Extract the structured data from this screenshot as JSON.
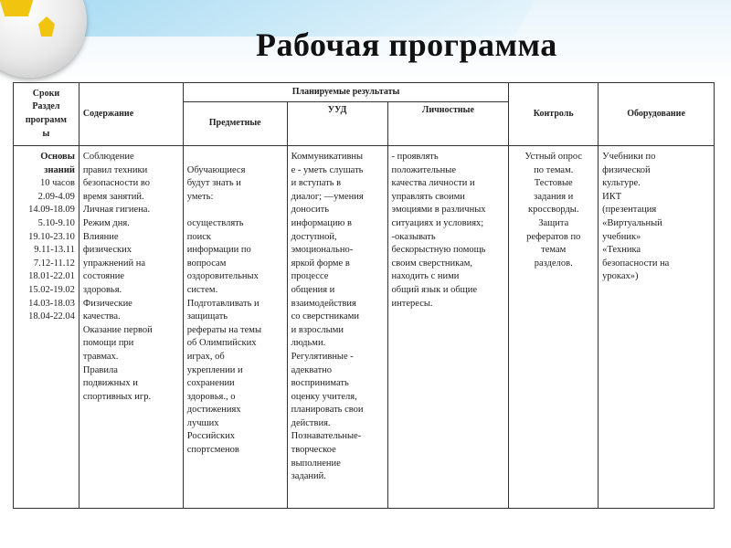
{
  "title": "Рабочая программа",
  "table": {
    "headers": {
      "terms": "Сроки\nРаздел\nпрограмм\nы",
      "content": "Содержание",
      "planned": "Планируемые результаты",
      "subject": "Предметные",
      "uud": "УУД",
      "personal": "Личностные",
      "control": "Контроль",
      "equipment": "Оборудование"
    },
    "row": {
      "section": "Основы\nзнаний",
      "terms": "10 часов\n2.09-4.09\n14.09-18.09\n5.10-9.10\n19.10-23.10\n9.11-13.11\n7.12-11.12\n18.01-22.01\n15.02-19.02\n14.03-18.03\n18.04-22.04",
      "content": "Соблюдение\nправил техники\nбезопасности во\nвремя занятий.\nЛичная гигиена.\nРежим дня.\nВлияние\nфизических\nупражнений на\nсостояние\nздоровья.\nФизические\nкачества.\nОказание первой\nпомощи при\nтравмах.\nПравила\nподвижных и\nспортивных игр.",
      "subject": "\nОбучающиеся\nбудут знать и\nуметь:\n\nосуществлять\nпоиск\nинформации по\nвопросам\nоздоровительных\nсистем.\nПодготавливать и\nзащищать\nрефераты на темы\nоб Олимпийских\nиграх, об\nукреплении и\nсохранении\nздоровья., о\nдостижениях\nлучших\nРоссийских\nспортсменов",
      "uud": "Коммуникативны\nе - уметь слушать\nи вступать в\nдиалог; —умения\nдоносить\nинформацию в\nдоступной,\nэмоционально-\nяркой форме в\nпроцессе\nобщения и\nвзаимодействия\nсо сверстниками\nи взрослыми\nлюдьми.\nРегулятивные -\nадекватно\nвоспринимать\nоценку учителя,\nпланировать свои\nдействия.\nПознавательные-\nтворческое\nвыполнение\nзаданий.",
      "personal": "          - проявлять\nположительные\nкачества личности и\nуправлять своими\nэмоциями в различных\nситуациях и условиях;\n          -оказывать\nбескорыстную помощь\nсвоим сверстникам,\nнаходить с ними\nобщий язык и общие\nинтересы.",
      "control": "Устный опрос\nпо темам.\nТестовые\nзадания и\nкроссворды.\nЗащита\nрефератов по\nтемам\nразделов.",
      "equipment": "      Учебники по\n      физической\n      культуре.\n      ИКТ\n(презентация\n      «Виртуальный\n      учебник»\n«Техника\n      безопасности на\n      уроках»)"
    }
  }
}
